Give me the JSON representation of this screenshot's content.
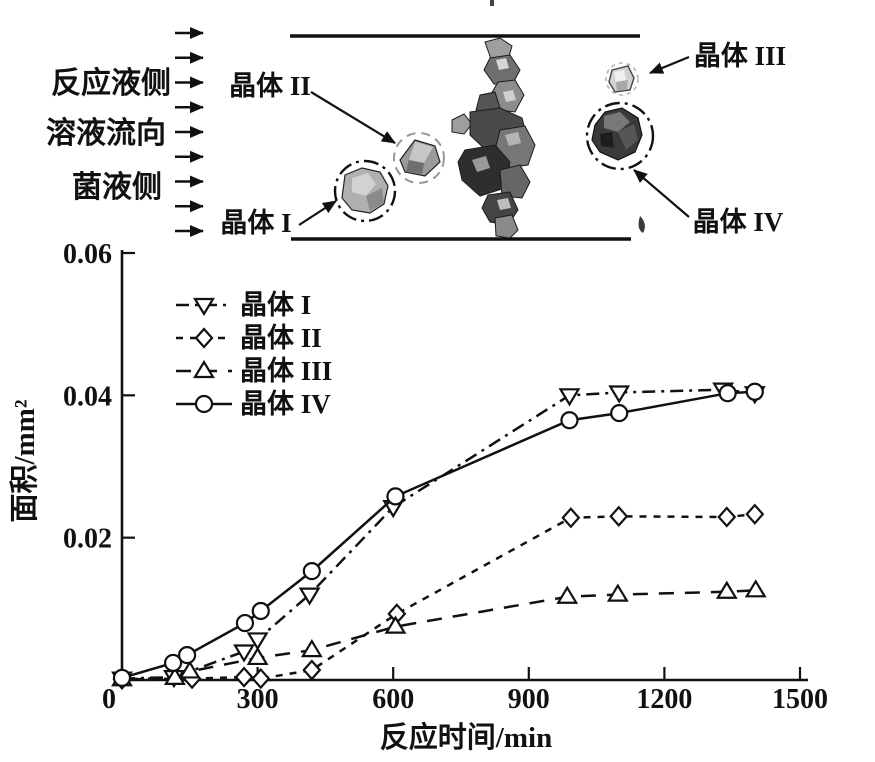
{
  "figure": {
    "background": "#ffffff",
    "ink_color": "#111111"
  },
  "diagram": {
    "side_labels": [
      {
        "text": "反应液侧"
      },
      {
        "text": "溶液流向"
      },
      {
        "text": "菌液侧"
      }
    ],
    "flow_arrow_count": 9,
    "crystal_labels": {
      "c1": "晶体 I",
      "c2": "晶体 II",
      "c3": "晶体 III",
      "c4": "晶体 IV"
    }
  },
  "chart_data": {
    "type": "line",
    "title": "",
    "xlabel": "反应时间/min",
    "ylabel": "面积/mm²",
    "xlim": [
      0,
      1500
    ],
    "ylim": [
      0,
      0.06
    ],
    "xticks": [
      0,
      300,
      600,
      900,
      1200,
      1500
    ],
    "xtick_labels": [
      "0",
      "300",
      "600",
      "900",
      "1200",
      "1500"
    ],
    "yticks": [
      0.02,
      0.04,
      0.06
    ],
    "ytick_labels": [
      "0.02",
      "0.04",
      "0.06"
    ],
    "grid": false,
    "legend_position": "upper-left-inside",
    "series": [
      {
        "name": "晶体 I",
        "marker": "triangle-down",
        "line_style": "dash-dot",
        "x": [
          0,
          115,
          270,
          300,
          415,
          600,
          990,
          1100,
          1330,
          1400
        ],
        "y": [
          0.0002,
          0.0004,
          0.004,
          0.0057,
          0.012,
          0.0243,
          0.04,
          0.0404,
          0.0408,
          0.0403
        ]
      },
      {
        "name": "晶体 II",
        "marker": "diamond",
        "line_style": "dashed",
        "x": [
          0,
          155,
          270,
          307,
          420,
          608,
          993,
          1099,
          1338,
          1400
        ],
        "y": [
          0.0001,
          0.0002,
          0.0004,
          0.0002,
          0.0014,
          0.0093,
          0.0228,
          0.023,
          0.0229,
          0.0233
        ]
      },
      {
        "name": "晶体 III",
        "marker": "triangle-up",
        "line_style": "long-dash",
        "x": [
          0,
          117,
          150,
          300,
          420,
          605,
          985,
          1097,
          1338,
          1402
        ],
        "y": [
          0.0001,
          0.0003,
          0.0012,
          0.0031,
          0.0042,
          0.0075,
          0.0117,
          0.012,
          0.0124,
          0.0126
        ]
      },
      {
        "name": "晶体 IV",
        "marker": "circle",
        "line_style": "solid",
        "x": [
          0,
          113,
          144,
          272,
          307,
          420,
          605,
          990,
          1100,
          1340,
          1400
        ],
        "y": [
          0.0003,
          0.0024,
          0.0035,
          0.008,
          0.0097,
          0.0153,
          0.0258,
          0.0365,
          0.0375,
          0.0403,
          0.0405
        ]
      }
    ]
  }
}
